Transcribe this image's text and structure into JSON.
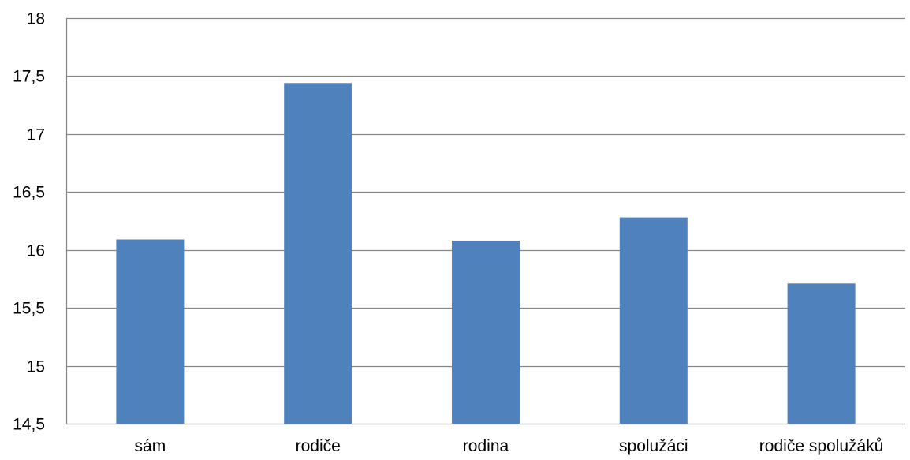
{
  "chart_data": {
    "type": "bar",
    "categories": [
      "sám",
      "rodiče",
      "rodina",
      "spolužáci",
      "rodiče spolužáků"
    ],
    "values": [
      16.09,
      17.44,
      16.08,
      16.28,
      15.71
    ],
    "ylim": [
      14.5,
      18
    ],
    "yticks": [
      14.5,
      15,
      15.5,
      16,
      16.5,
      17,
      17.5,
      18
    ],
    "ytick_labels": [
      "14,5",
      "15",
      "15,5",
      "16",
      "16,5",
      "17",
      "17,5",
      "18"
    ],
    "grid": true,
    "bar_color": "#4f81bd",
    "grid_color": "#868686",
    "title": "",
    "xlabel": "",
    "ylabel": ""
  }
}
